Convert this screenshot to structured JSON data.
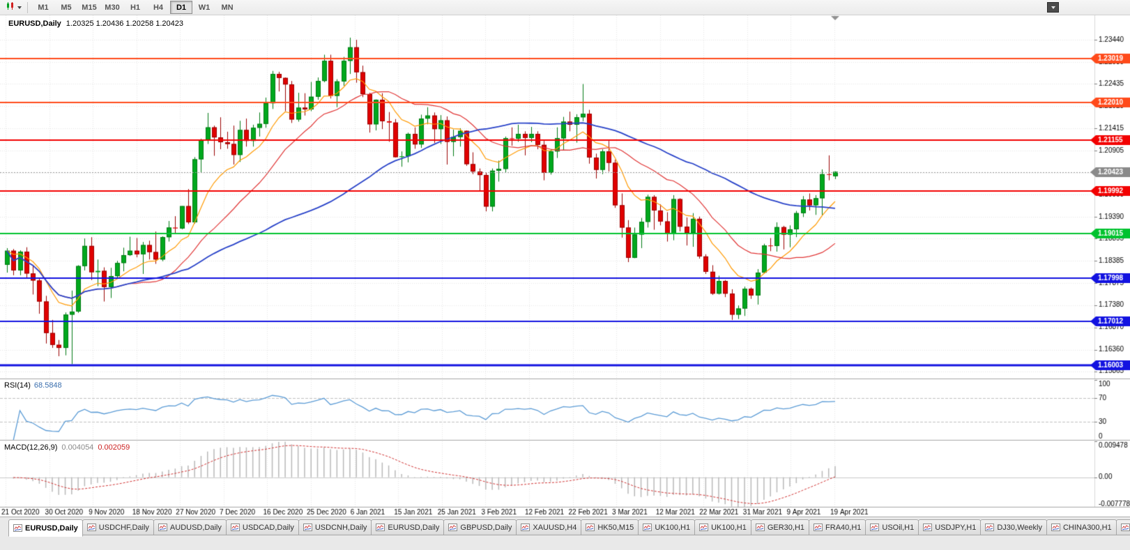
{
  "window": {
    "title": "EURUSD,Daily"
  },
  "toolbar": {
    "timeframes": [
      {
        "label": "M1",
        "active": false
      },
      {
        "label": "M5",
        "active": false
      },
      {
        "label": "M15",
        "active": false
      },
      {
        "label": "M30",
        "active": false
      },
      {
        "label": "H1",
        "active": false
      },
      {
        "label": "H4",
        "active": false
      },
      {
        "label": "D1",
        "active": true
      },
      {
        "label": "W1",
        "active": false
      },
      {
        "label": "MN",
        "active": false
      }
    ]
  },
  "chart_header": {
    "symbol": "EURUSD,Daily",
    "ohlc": "1.20325 1.20436 1.20258 1.20423"
  },
  "indicators": {
    "rsi": {
      "name": "RSI(14)",
      "value": "68.5848",
      "color": "#5b9bd5",
      "levels": [
        {
          "value": 100,
          "label": "100",
          "dashed": false
        },
        {
          "value": 70,
          "label": "70",
          "dashed": true
        },
        {
          "value": 30,
          "label": "30",
          "dashed": true
        },
        {
          "value": 0,
          "label": "0",
          "dashed": false
        }
      ]
    },
    "macd": {
      "name": "MACD(12,26,9)",
      "value_main": "0.004054",
      "value_signal": "0.002059",
      "histogram_color": "#b8b8b8",
      "signal_color": "#d03030",
      "axis": [
        {
          "value": 0.009478,
          "label": "0.009478"
        },
        {
          "value": 0,
          "label": "0.00"
        },
        {
          "value": -0.007778,
          "label": "-0.007778"
        }
      ]
    }
  },
  "price_axis": {
    "ticks": [
      "1.23440",
      "1.22930",
      "1.22435",
      "1.21925",
      "1.21415",
      "1.20905",
      "1.20395",
      "1.19900",
      "1.19390",
      "1.18895",
      "1.18385",
      "1.17875",
      "1.17380",
      "1.16870",
      "1.16360",
      "1.15865"
    ],
    "current": {
      "price": 1.20423,
      "label": "1.20423",
      "color": "#8a8a8a"
    }
  },
  "hlines": [
    {
      "price": 1.23019,
      "label": "1.23019",
      "color": "#ff4a1a",
      "width": 2
    },
    {
      "price": 1.2201,
      "label": "1.22010",
      "color": "#ff4a1a",
      "width": 2
    },
    {
      "price": 1.21155,
      "label": "1.21155",
      "color": "#f20000",
      "width": 2
    },
    {
      "price": 1.19992,
      "label": "1.19992",
      "color": "#f20000",
      "width": 2
    },
    {
      "price": 1.19015,
      "label": "1.19015",
      "color": "#00c22e",
      "width": 2
    },
    {
      "price": 1.17998,
      "label": "1.17998",
      "color": "#1212e0",
      "width": 2
    },
    {
      "price": 1.17012,
      "label": "1.17012",
      "color": "#1212e0",
      "width": 2
    },
    {
      "price": 1.16003,
      "label": "1.16003",
      "color": "#1212e0",
      "width": 3
    }
  ],
  "time_axis": {
    "labels": [
      "21 Oct 2020",
      "30 Oct 2020",
      "9 Nov 2020",
      "18 Nov 2020",
      "27 Nov 2020",
      "7 Dec 2020",
      "16 Dec 2020",
      "25 Dec 2020",
      "6 Jan 2021",
      "15 Jan 2021",
      "25 Jan 2021",
      "3 Feb 2021",
      "12 Feb 2021",
      "22 Feb 2021",
      "3 Mar 2021",
      "12 Mar 2021",
      "22 Mar 2021",
      "31 Mar 2021",
      "9 Apr 2021",
      "19 Apr 2021"
    ]
  },
  "tabs": [
    {
      "label": "EURUSD,Daily",
      "active": true,
      "clipped": false
    },
    {
      "label": "USDCHF,Daily",
      "active": false,
      "clipped": false
    },
    {
      "label": "AUDUSD,Daily",
      "active": false,
      "clipped": false
    },
    {
      "label": "USDCAD,Daily",
      "active": false,
      "clipped": false
    },
    {
      "label": "USDCNH,Daily",
      "active": false,
      "clipped": false
    },
    {
      "label": "EURUSD,Daily",
      "active": false,
      "clipped": false
    },
    {
      "label": "GBPUSD,Daily",
      "active": false,
      "clipped": false
    },
    {
      "label": "XAUUSD,H4",
      "active": false,
      "clipped": false
    },
    {
      "label": "HK50,M15",
      "active": false,
      "clipped": false
    },
    {
      "label": "UK100,H1",
      "active": false,
      "clipped": false
    },
    {
      "label": "UK100,H1",
      "active": false,
      "clipped": false
    },
    {
      "label": "GER30,H1",
      "active": false,
      "clipped": false
    },
    {
      "label": "FRA40,H1",
      "active": false,
      "clipped": false
    },
    {
      "label": "USOil,H1",
      "active": false,
      "clipped": false
    },
    {
      "label": "USDJPY,H1",
      "active": false,
      "clipped": false
    },
    {
      "label": "DJ30,Weekly",
      "active": false,
      "clipped": false
    },
    {
      "label": "CHINA300,H1",
      "active": false,
      "clipped": false
    },
    {
      "label": "U",
      "active": false,
      "clipped": true
    }
  ],
  "chart_data": {
    "type": "candlestick",
    "symbol": "EURUSD",
    "timeframe": "Daily",
    "title": "EURUSD,Daily 1.20325 1.20436 1.20258 1.20423",
    "price_range": [
      1.157,
      1.24
    ],
    "macd_range": [
      -0.007778,
      0.009478
    ],
    "colors": {
      "up": "#00a81e",
      "up_border": "#007a12",
      "down": "#e00000",
      "down_border": "#9a0000"
    },
    "ma_colors": {
      "fast": "#ff9900",
      "mid": "#e03535",
      "slow": "#2741c8"
    },
    "candles": [
      [
        1.183,
        1.1868,
        1.1812,
        1.1862
      ],
      [
        1.1862,
        1.1866,
        1.1806,
        1.1817
      ],
      [
        1.1817,
        1.1863,
        1.1806,
        1.186
      ],
      [
        1.186,
        1.187,
        1.18,
        1.181
      ],
      [
        1.181,
        1.1828,
        1.1762,
        1.1794
      ],
      [
        1.1794,
        1.18,
        1.1718,
        1.1746
      ],
      [
        1.1746,
        1.1759,
        1.165,
        1.1674
      ],
      [
        1.1674,
        1.1704,
        1.164,
        1.1647
      ],
      [
        1.1647,
        1.1658,
        1.1621,
        1.164
      ],
      [
        1.164,
        1.1721,
        1.1623,
        1.1716
      ],
      [
        1.1716,
        1.1771,
        1.1603,
        1.1723
      ],
      [
        1.1723,
        1.1829,
        1.172,
        1.1827
      ],
      [
        1.1827,
        1.189,
        1.1817,
        1.1873
      ],
      [
        1.1873,
        1.1893,
        1.1795,
        1.1813
      ],
      [
        1.1813,
        1.1842,
        1.1781,
        1.1816
      ],
      [
        1.1816,
        1.1824,
        1.1746,
        1.1779
      ],
      [
        1.1779,
        1.1823,
        1.1754,
        1.1804
      ],
      [
        1.1804,
        1.1839,
        1.1799,
        1.1834
      ],
      [
        1.1834,
        1.1869,
        1.1815,
        1.1852
      ],
      [
        1.1852,
        1.1894,
        1.185,
        1.1862
      ],
      [
        1.1862,
        1.1891,
        1.1847,
        1.1854
      ],
      [
        1.1854,
        1.1882,
        1.1809,
        1.1875
      ],
      [
        1.1875,
        1.1885,
        1.1842,
        1.1859
      ],
      [
        1.1859,
        1.1906,
        1.1832,
        1.1842
      ],
      [
        1.1842,
        1.1895,
        1.1838,
        1.1893
      ],
      [
        1.1893,
        1.193,
        1.1883,
        1.1915
      ],
      [
        1.1915,
        1.1941,
        1.1902,
        1.1913
      ],
      [
        1.1913,
        1.1964,
        1.1911,
        1.1964
      ],
      [
        1.1964,
        1.2003,
        1.1923,
        1.1927
      ],
      [
        1.1927,
        1.2076,
        1.1924,
        1.2071
      ],
      [
        1.2071,
        1.2118,
        1.204,
        1.2115
      ],
      [
        1.2115,
        1.2177,
        1.2106,
        1.2144
      ],
      [
        1.2144,
        1.2148,
        1.2079,
        1.2121
      ],
      [
        1.2121,
        1.2167,
        1.2094,
        1.211
      ],
      [
        1.211,
        1.2134,
        1.2095,
        1.2106
      ],
      [
        1.2106,
        1.2148,
        1.2059,
        1.2081
      ],
      [
        1.2081,
        1.2159,
        1.2065,
        1.2138
      ],
      [
        1.2138,
        1.2164,
        1.21,
        1.2113
      ],
      [
        1.2113,
        1.215,
        1.21,
        1.2143
      ],
      [
        1.2143,
        1.2178,
        1.2123,
        1.2152
      ],
      [
        1.2152,
        1.2212,
        1.2143,
        1.2199
      ],
      [
        1.2199,
        1.2273,
        1.2186,
        1.2266
      ],
      [
        1.2266,
        1.2271,
        1.2226,
        1.2257
      ],
      [
        1.2257,
        1.2258,
        1.2181,
        1.2242
      ],
      [
        1.2242,
        1.225,
        1.2154,
        1.2162
      ],
      [
        1.2162,
        1.2223,
        1.2157,
        1.2189
      ],
      [
        1.2189,
        1.2222,
        1.2171,
        1.2185
      ],
      [
        1.2185,
        1.2248,
        1.2181,
        1.2214
      ],
      [
        1.2214,
        1.2258,
        1.2207,
        1.225
      ],
      [
        1.225,
        1.231,
        1.2247,
        1.2296
      ],
      [
        1.2296,
        1.231,
        1.221,
        1.2216
      ],
      [
        1.2216,
        1.2254,
        1.219,
        1.2249
      ],
      [
        1.2249,
        1.2305,
        1.2239,
        1.2296
      ],
      [
        1.2296,
        1.2349,
        1.2266,
        1.2327
      ],
      [
        1.2327,
        1.2344,
        1.2246,
        1.227
      ],
      [
        1.227,
        1.2285,
        1.2213,
        1.222
      ],
      [
        1.222,
        1.2223,
        1.2132,
        1.2151
      ],
      [
        1.2151,
        1.2208,
        1.2137,
        1.2207
      ],
      [
        1.2207,
        1.2222,
        1.214,
        1.2158
      ],
      [
        1.2158,
        1.2179,
        1.2111,
        1.2155
      ],
      [
        1.2155,
        1.2163,
        1.2075,
        1.2076
      ],
      [
        1.2076,
        1.2089,
        1.2054,
        1.2078
      ],
      [
        1.2078,
        1.2132,
        1.2064,
        1.2129
      ],
      [
        1.2129,
        1.2144,
        1.2095,
        1.2105
      ],
      [
        1.2105,
        1.2173,
        1.2097,
        1.2164
      ],
      [
        1.2164,
        1.219,
        1.2151,
        1.2171
      ],
      [
        1.2171,
        1.2178,
        1.2108,
        1.214
      ],
      [
        1.214,
        1.2172,
        1.2106,
        1.216
      ],
      [
        1.216,
        1.2169,
        1.2059,
        1.2111
      ],
      [
        1.2111,
        1.2139,
        1.2078,
        1.2122
      ],
      [
        1.2122,
        1.2142,
        1.21,
        1.2136
      ],
      [
        1.2136,
        1.2137,
        1.2056,
        1.206
      ],
      [
        1.206,
        1.2087,
        1.2037,
        1.2043
      ],
      [
        1.2043,
        1.205,
        1.1997,
        1.2035
      ],
      [
        1.2035,
        1.204,
        1.1952,
        1.1963
      ],
      [
        1.1963,
        1.205,
        1.1952,
        1.2045
      ],
      [
        1.2045,
        1.2068,
        1.202,
        1.2049
      ],
      [
        1.2049,
        1.2123,
        1.2041,
        1.2119
      ],
      [
        1.2119,
        1.2144,
        1.2102,
        1.2118
      ],
      [
        1.2118,
        1.215,
        1.2111,
        1.2129
      ],
      [
        1.2129,
        1.2135,
        1.208,
        1.212
      ],
      [
        1.212,
        1.2145,
        1.211,
        1.2129
      ],
      [
        1.2129,
        1.2135,
        1.2094,
        1.2104
      ],
      [
        1.2104,
        1.2113,
        1.2023,
        1.204
      ],
      [
        1.204,
        1.2094,
        1.2036,
        1.2089
      ],
      [
        1.2089,
        1.2144,
        1.2074,
        1.2119
      ],
      [
        1.2119,
        1.2168,
        1.2091,
        1.2157
      ],
      [
        1.2157,
        1.218,
        1.2135,
        1.215
      ],
      [
        1.215,
        1.2174,
        1.2109,
        1.2167
      ],
      [
        1.2167,
        1.2243,
        1.2158,
        1.2175
      ],
      [
        1.2175,
        1.2184,
        1.2061,
        1.2075
      ],
      [
        1.2075,
        1.2084,
        1.2027,
        1.2047
      ],
      [
        1.2047,
        1.2094,
        1.2037,
        1.2089
      ],
      [
        1.2089,
        1.2113,
        1.2043,
        1.2063
      ],
      [
        1.2063,
        1.207,
        1.196,
        1.1966
      ],
      [
        1.1966,
        1.1993,
        1.1892,
        1.1915
      ],
      [
        1.1915,
        1.1932,
        1.1836,
        1.1846
      ],
      [
        1.1846,
        1.1915,
        1.1845,
        1.1899
      ],
      [
        1.1899,
        1.1937,
        1.1868,
        1.1928
      ],
      [
        1.1928,
        1.199,
        1.1915,
        1.1985
      ],
      [
        1.1985,
        1.1989,
        1.191,
        1.1954
      ],
      [
        1.1954,
        1.1968,
        1.192,
        1.1929
      ],
      [
        1.1929,
        1.195,
        1.1883,
        1.19
      ],
      [
        1.19,
        1.1989,
        1.1886,
        1.198
      ],
      [
        1.198,
        1.1982,
        1.1906,
        1.1917
      ],
      [
        1.1917,
        1.1938,
        1.1874,
        1.1903
      ],
      [
        1.1903,
        1.1948,
        1.1871,
        1.1935
      ],
      [
        1.1935,
        1.194,
        1.1844,
        1.1849
      ],
      [
        1.1849,
        1.1854,
        1.1809,
        1.1814
      ],
      [
        1.1814,
        1.1829,
        1.1761,
        1.1764
      ],
      [
        1.1764,
        1.1805,
        1.1762,
        1.1793
      ],
      [
        1.1793,
        1.1795,
        1.1756,
        1.1764
      ],
      [
        1.1764,
        1.1774,
        1.1704,
        1.1716
      ],
      [
        1.1716,
        1.1737,
        1.1706,
        1.173
      ],
      [
        1.173,
        1.178,
        1.1713,
        1.1775
      ],
      [
        1.1775,
        1.1778,
        1.1752,
        1.176
      ],
      [
        1.176,
        1.182,
        1.1739,
        1.1812
      ],
      [
        1.1812,
        1.1878,
        1.181,
        1.1874
      ],
      [
        1.1874,
        1.1891,
        1.1861,
        1.1873
      ],
      [
        1.1873,
        1.1927,
        1.186,
        1.1916
      ],
      [
        1.1916,
        1.1919,
        1.1865,
        1.1899
      ],
      [
        1.1899,
        1.192,
        1.187,
        1.1911
      ],
      [
        1.1911,
        1.1953,
        1.1893,
        1.1948
      ],
      [
        1.1948,
        1.1987,
        1.1939,
        1.1979
      ],
      [
        1.1979,
        1.1993,
        1.1954,
        1.1966
      ],
      [
        1.1966,
        1.1989,
        1.1944,
        1.1982
      ],
      [
        1.1982,
        1.2048,
        1.1943,
        1.2037
      ],
      [
        1.2037,
        1.208,
        1.2023,
        1.2036
      ],
      [
        1.20325,
        1.20436,
        1.20258,
        1.20423
      ]
    ]
  }
}
